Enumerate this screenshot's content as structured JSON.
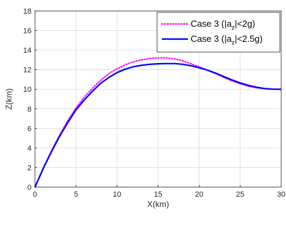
{
  "chart_data": {
    "type": "line",
    "xlabel": "X(km)",
    "ylabel": "Z(km)",
    "xlim": [
      0,
      30
    ],
    "ylim": [
      0,
      18
    ],
    "xticks": [
      0,
      5,
      10,
      15,
      20,
      25,
      30
    ],
    "yticks": [
      0,
      2,
      4,
      6,
      8,
      10,
      12,
      14,
      16,
      18
    ],
    "grid": true,
    "legend_position": "top-right",
    "series": [
      {
        "name": "Case 3 (|a_z|<2g)",
        "legend_main": "Case 3 (|a",
        "legend_sub": "z",
        "legend_tail": "|<2g)",
        "color": "#ff00ff",
        "style": "dotted",
        "x": [
          0,
          1,
          2,
          3,
          4,
          5,
          6,
          7,
          8,
          9,
          10,
          11,
          12,
          13,
          14,
          15,
          16,
          17,
          18,
          19,
          20,
          21,
          22,
          23,
          24,
          25,
          26,
          27,
          28,
          29,
          30
        ],
        "y": [
          0,
          1.9,
          3.7,
          5.3,
          6.8,
          8.1,
          9.2,
          10.1,
          10.9,
          11.6,
          12.1,
          12.5,
          12.8,
          13.0,
          13.15,
          13.2,
          13.2,
          13.1,
          12.9,
          12.6,
          12.3,
          11.95,
          11.6,
          11.2,
          10.85,
          10.55,
          10.3,
          10.15,
          10.05,
          10.0,
          10.0
        ]
      },
      {
        "name": "Case 3 (|a_z|<2.5g)",
        "legend_main": "Case 3 (|a",
        "legend_sub": "z",
        "legend_tail": "|<2.5g)",
        "color": "#0000ff",
        "style": "solid",
        "x": [
          0,
          1,
          2,
          3,
          4,
          5,
          6,
          7,
          8,
          9,
          10,
          11,
          12,
          13,
          14,
          15,
          16,
          17,
          18,
          19,
          20,
          21,
          22,
          23,
          24,
          25,
          26,
          27,
          28,
          29,
          30
        ],
        "y": [
          0,
          1.9,
          3.6,
          5.2,
          6.6,
          7.9,
          8.9,
          9.8,
          10.6,
          11.2,
          11.7,
          12.05,
          12.3,
          12.45,
          12.55,
          12.6,
          12.62,
          12.62,
          12.55,
          12.4,
          12.2,
          11.95,
          11.65,
          11.3,
          10.95,
          10.65,
          10.4,
          10.2,
          10.07,
          10.01,
          10.0
        ]
      }
    ]
  }
}
